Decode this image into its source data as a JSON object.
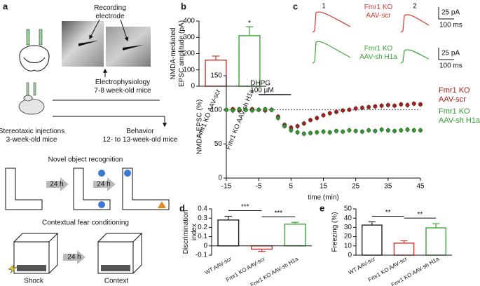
{
  "panel_labels": [
    "a",
    "b",
    "c",
    "d",
    "e"
  ],
  "diagram": {
    "recording_label": "Recording electrode",
    "electrophysiology": "Electrophysiology 7-8 week-old mice",
    "injection": "Stereotaxic injections 3-week-old mice",
    "behavior": "Behavior 12- to 13-week-old mice",
    "nor_title": "Novel object recognition",
    "nor_intervals": [
      "24 h",
      "24 h"
    ],
    "cfc_title": "Contextual fear conditioning",
    "cfc_interval": "24 h",
    "cfc_labels": [
      "Shock",
      "Context"
    ]
  },
  "traces": {
    "numbers": [
      "1",
      "2"
    ],
    "groups": [
      {
        "label": "Fmr1 KO AAV-scr",
        "color": "#d2362e",
        "scale": [
          "25 pA",
          "100 ms"
        ]
      },
      {
        "label": "Fmr1 KO AAV-sh H1a",
        "color": "#3aa335",
        "scale": [
          "25 pA",
          "100 ms"
        ]
      }
    ]
  },
  "chart_data": [
    {
      "type": "bar",
      "y_label": "NMDA-mediated EPSC amplitude (pA)",
      "categories": [
        "Fmr1 KO AAV-scr",
        "Fmr1 KO AAV-sh H1a"
      ],
      "values": [
        160,
        310
      ],
      "errors": [
        25,
        55
      ],
      "colors": [
        "#d2362e",
        "#3aa335"
      ],
      "ylim": [
        0,
        400
      ],
      "yticks": [
        0,
        100,
        200,
        300,
        400
      ],
      "significance": [
        {
          "bars": [
            1
          ],
          "label": "*"
        }
      ]
    },
    {
      "type": "scatter",
      "x_label": "time (min)",
      "y_label": "NMDA-EPSC (%)",
      "x": [
        -15,
        -13,
        -11,
        -9,
        -7,
        -5,
        -3,
        -1,
        1,
        3,
        5,
        7,
        9,
        11,
        13,
        15,
        17,
        19,
        21,
        23,
        25,
        27,
        29,
        31,
        33,
        35,
        37,
        39,
        41,
        43,
        45
      ],
      "series": [
        {
          "name": "Fmr1 KO AAV-scr",
          "color": "#a3201b",
          "values": [
            100,
            101,
            99,
            100,
            101,
            100,
            99,
            100,
            90,
            78,
            74,
            76,
            80,
            85,
            88,
            92,
            95,
            97,
            99,
            100,
            102,
            103,
            104,
            105,
            106,
            107,
            106,
            108,
            107,
            109,
            108
          ]
        },
        {
          "name": "Fmr1 KO AAV-sh H1a",
          "color": "#2f9a2b",
          "values": [
            100,
            99,
            101,
            100,
            99,
            100,
            101,
            100,
            88,
            76,
            70,
            67,
            65,
            66,
            67,
            68,
            67,
            69,
            68,
            70,
            69,
            68,
            70,
            69,
            71,
            70,
            69,
            70,
            71,
            70,
            70
          ]
        }
      ],
      "xlim": [
        -15,
        45
      ],
      "xticks": [
        -15,
        -5,
        5,
        15,
        25,
        35,
        45
      ],
      "ylim": [
        0,
        150
      ],
      "yticks": [
        0,
        50,
        100,
        150
      ],
      "reference_line": 100,
      "span": {
        "label": "DHPG",
        "sublabel": "100 µM",
        "from": -5,
        "to": 5
      }
    },
    {
      "type": "bar",
      "y_label": "Discrimination index",
      "categories": [
        "WT AAV-scr",
        "Fmr1 KO AAV-scr",
        "Fmr1 KO AAV-sh H1a"
      ],
      "values": [
        0.28,
        -0.035,
        0.235
      ],
      "errors": [
        0.04,
        0.025,
        0.02
      ],
      "colors": [
        "#222222",
        "#d2362e",
        "#3aa335"
      ],
      "ylim": [
        -0.1,
        0.4
      ],
      "yticks": [
        -0.1,
        0,
        0.1,
        0.2,
        0.3,
        0.4
      ],
      "significance": [
        {
          "bars": [
            0,
            1
          ],
          "label": "***"
        },
        {
          "bars": [
            1,
            2
          ],
          "label": "***"
        }
      ]
    },
    {
      "type": "bar",
      "y_label": "Freezing (%)",
      "categories": [
        "WT AAV-scr",
        "Fmr1 KO AAV-scr",
        "Fmr1 KO AAV-sh H1a"
      ],
      "values": [
        32.5,
        13,
        29.5
      ],
      "errors": [
        3.5,
        2.5,
        4.5
      ],
      "colors": [
        "#222222",
        "#d2362e",
        "#3aa335"
      ],
      "ylim": [
        0,
        50
      ],
      "yticks": [
        0,
        10,
        20,
        30,
        40,
        50
      ],
      "significance": [
        {
          "bars": [
            0,
            1
          ],
          "label": "**"
        },
        {
          "bars": [
            1,
            2
          ],
          "label": "**"
        }
      ]
    }
  ]
}
